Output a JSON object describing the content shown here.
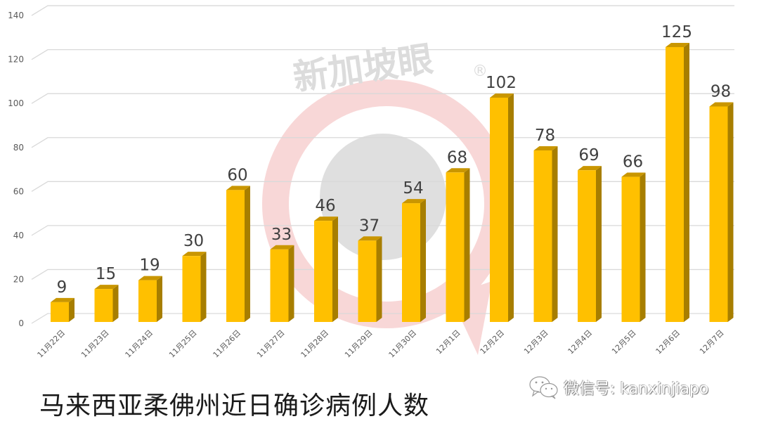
{
  "watermark": {
    "text": "新加坡眼",
    "registered_mark": "®",
    "ring_color": "#f8d7d7",
    "center_color": "#d9d9d9"
  },
  "caption": "马来西亚柔佛州近日确诊病例人数",
  "wechat": {
    "icon": "wechat-icon",
    "label": "微信号: kanxinjiapo"
  },
  "colors": {
    "bar_front": "#FFC000",
    "bar_top": "#C99600",
    "bar_side": "#A77E00",
    "grid": "#d9d9d9",
    "tick_text": "#595959",
    "label_text": "#404040"
  },
  "chart_data": {
    "type": "bar",
    "title": "马来西亚柔佛州近日确诊病例人数",
    "xlabel": "",
    "ylabel": "",
    "ylim": [
      0,
      140
    ],
    "yticks": [
      0,
      20,
      40,
      60,
      80,
      100,
      120,
      140
    ],
    "grid": true,
    "legend": null,
    "style": "3d-column",
    "categories": [
      "11月22日",
      "11月23日",
      "11月24日",
      "11月25日",
      "11月26日",
      "11月27日",
      "11月28日",
      "11月29日",
      "11月30日",
      "12月1日",
      "12月2日",
      "12月3日",
      "12月4日",
      "12月5日",
      "12月6日",
      "12月7日"
    ],
    "values": [
      9,
      15,
      19,
      30,
      60,
      33,
      46,
      37,
      54,
      68,
      102,
      78,
      69,
      66,
      125,
      98
    ]
  }
}
